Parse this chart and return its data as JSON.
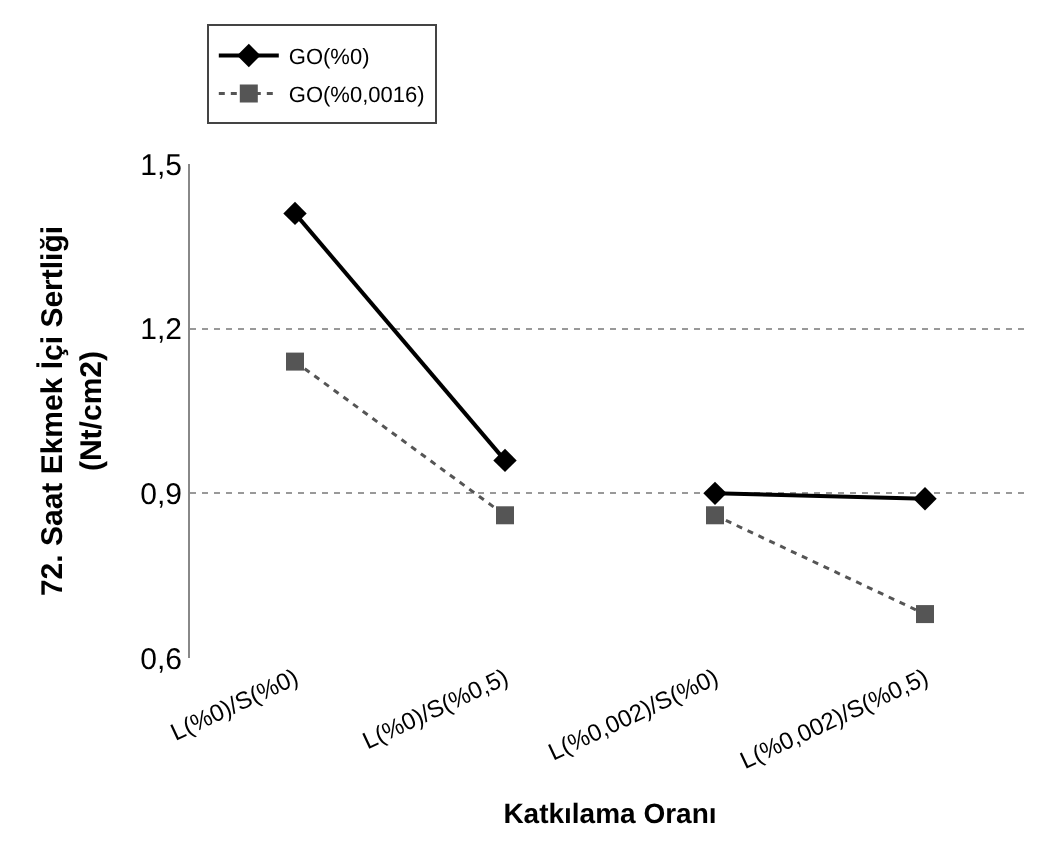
{
  "chart_data": {
    "type": "line",
    "xlabel": "Katkılama Oranı",
    "ylabel": "72. Saat Ekmek İçi Sertliği\n(Nt/cm2)",
    "categories": [
      "L(%0)/S(%0)",
      "L(%0)/S(%0,5)",
      "L(%0,002)/S(%0)",
      "L(%0,002)/S(%0,5)"
    ],
    "series": [
      {
        "name": "GO(%0)",
        "color": "#000000",
        "marker": "diamond",
        "line_style": "solid",
        "values": [
          1.41,
          0.96,
          null,
          null
        ]
      },
      {
        "name": "GO(%0,0016)",
        "color": "#555555",
        "marker": "square",
        "line_style": "dotted",
        "values": [
          1.14,
          0.86,
          null,
          null
        ]
      },
      {
        "color": "#000000",
        "marker": "diamond",
        "line_style": "solid",
        "values": [
          null,
          null,
          0.9,
          0.89
        ]
      },
      {
        "color": "#555555",
        "marker": "square",
        "line_style": "dotted",
        "values": [
          null,
          null,
          0.86,
          0.68
        ]
      }
    ],
    "ylim": [
      0.6,
      1.5
    ],
    "yticks": [
      {
        "value": 0.6,
        "label": "0,6"
      },
      {
        "value": 0.9,
        "label": "0,9"
      },
      {
        "value": 1.2,
        "label": "1,2"
      },
      {
        "value": 1.5,
        "label": "1,5"
      }
    ],
    "grid": "y",
    "legend": "top left"
  }
}
